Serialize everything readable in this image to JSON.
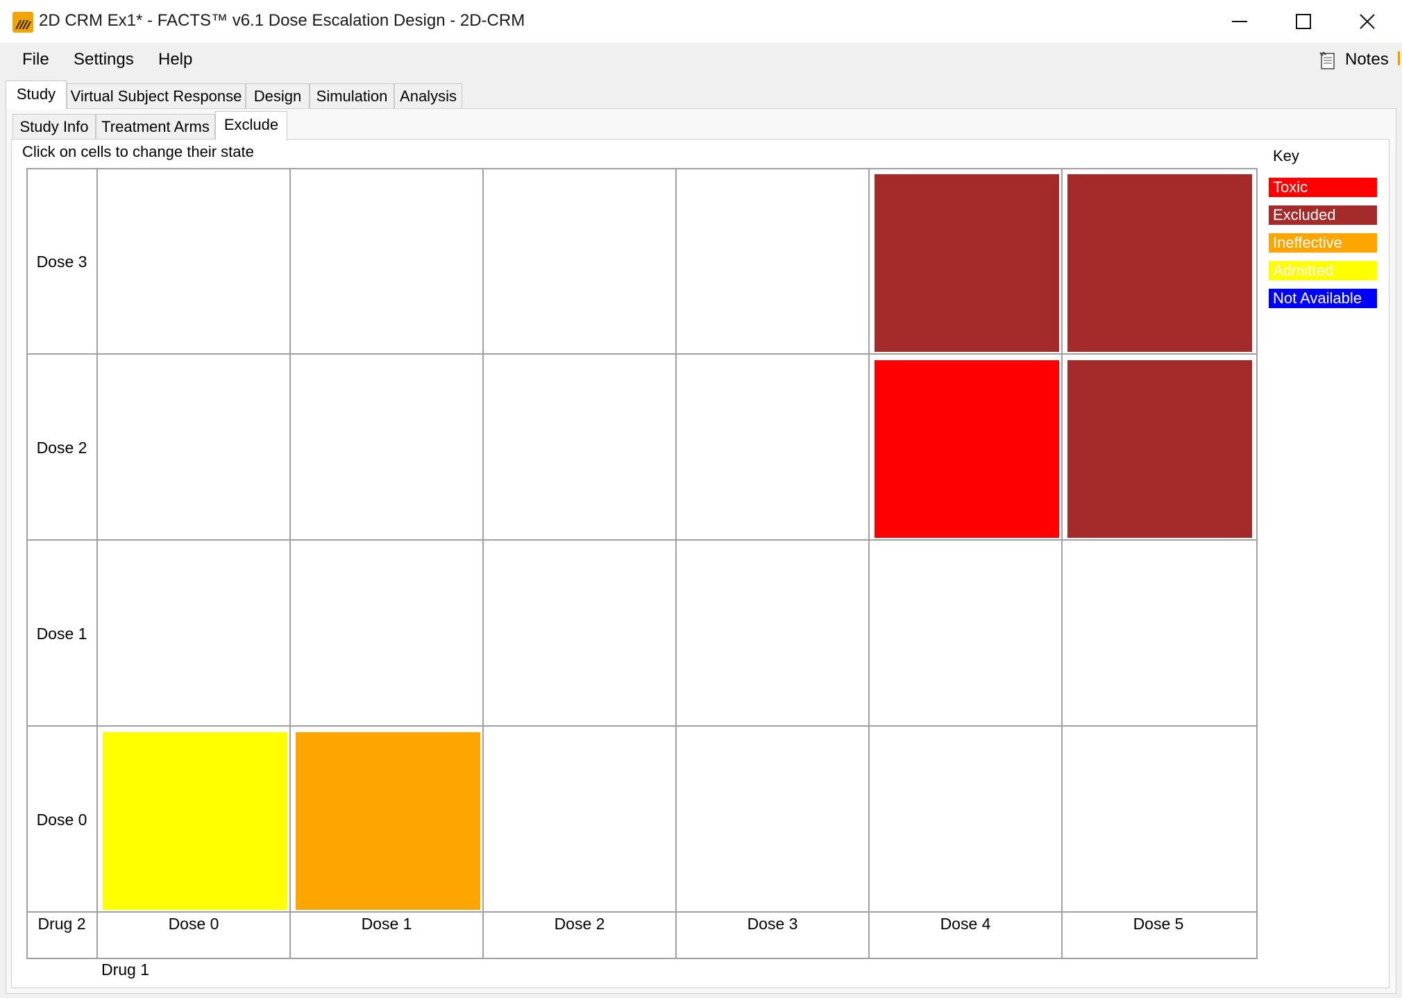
{
  "window": {
    "title": "2D CRM Ex1* - FACTS™ v6.1 Dose Escalation Design - 2D-CRM",
    "controls": [
      "minimize",
      "maximize",
      "close"
    ]
  },
  "menu": {
    "items": [
      {
        "label": "File"
      },
      {
        "label": "Settings"
      },
      {
        "label": "Help"
      }
    ],
    "notes_label": "Notes"
  },
  "main_tabs": [
    {
      "label": "Study",
      "active": true
    },
    {
      "label": "Virtual Subject Response",
      "active": false
    },
    {
      "label": "Design",
      "active": false
    },
    {
      "label": "Simulation",
      "active": false
    },
    {
      "label": "Analysis",
      "active": false
    }
  ],
  "sub_tabs": [
    {
      "label": "Study Info",
      "active": false
    },
    {
      "label": "Treatment Arms",
      "active": false
    },
    {
      "label": "Exclude",
      "active": true
    }
  ],
  "hint": "Click on cells to change their state",
  "grid": {
    "row_axis_label": "Drug 2",
    "col_axis_label": "Drug 1",
    "rows": [
      "Dose 3",
      "Dose 2",
      "Dose 1",
      "Dose 0"
    ],
    "cols": [
      "Dose 0",
      "Dose 1",
      "Dose 2",
      "Dose 3",
      "Dose 4",
      "Dose 5"
    ],
    "states": [
      [
        "none",
        "none",
        "none",
        "none",
        "excluded",
        "excluded"
      ],
      [
        "none",
        "none",
        "none",
        "none",
        "toxic",
        "excluded"
      ],
      [
        "none",
        "none",
        "none",
        "none",
        "none",
        "none"
      ],
      [
        "admitted",
        "ineffective",
        "none",
        "none",
        "none",
        "none"
      ]
    ]
  },
  "key": {
    "title": "Key",
    "items": [
      {
        "state": "toxic",
        "label": "Toxic",
        "color": "#ff0000",
        "text_color": "#ffffff"
      },
      {
        "state": "excluded",
        "label": "Excluded",
        "color": "#a52a2a",
        "text_color": "#ffffff"
      },
      {
        "state": "ineffective",
        "label": "Ineffective",
        "color": "#ffa500",
        "text_color": "#ffffff"
      },
      {
        "state": "admitted",
        "label": "Admitted",
        "color": "#ffff00",
        "text_color": "#ffffff"
      },
      {
        "state": "not_available",
        "label": "Not Available",
        "color": "#0000ff",
        "text_color": "#ffffff"
      }
    ]
  }
}
